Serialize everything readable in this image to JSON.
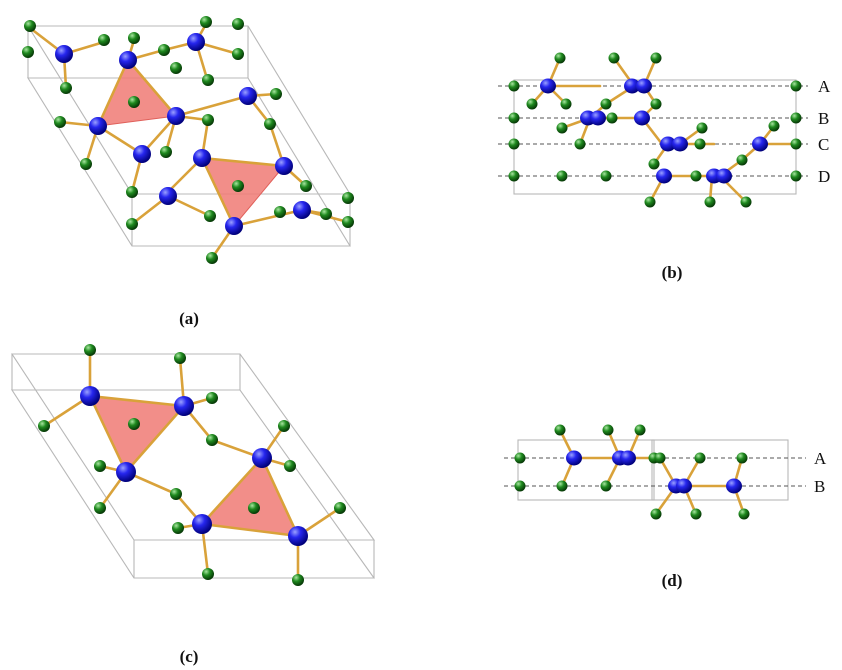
{
  "panels": [
    {
      "id": "a",
      "caption": "(a)"
    },
    {
      "id": "b",
      "caption": "(b)",
      "layers": [
        "A",
        "B",
        "C",
        "D"
      ]
    },
    {
      "id": "c",
      "caption": "(c)"
    },
    {
      "id": "d",
      "caption": "(d)",
      "layers": [
        "A",
        "B"
      ]
    }
  ],
  "colors": {
    "blue_atom": "#1e1ee6",
    "green_atom": "#1f8a1f",
    "bond": "#d9a23a",
    "tetrahedron": "#f07a74",
    "cell": "#b8b8b8"
  }
}
